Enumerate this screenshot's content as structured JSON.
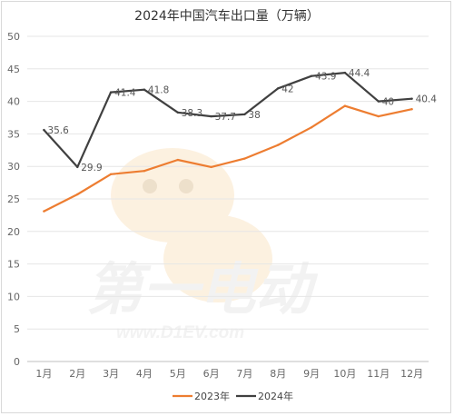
{
  "chart_data": {
    "type": "line",
    "title": "2024年中国汽车出口量（万辆）",
    "categories": [
      "1月",
      "2月",
      "3月",
      "4月",
      "5月",
      "6月",
      "7月",
      "8月",
      "9月",
      "10月",
      "11月",
      "12月"
    ],
    "ylim": [
      0,
      50
    ],
    "yticks": [
      0,
      5,
      10,
      15,
      20,
      25,
      30,
      35,
      40,
      45,
      50
    ],
    "grid": true,
    "legend_position": "bottom",
    "series": [
      {
        "name": "2023年",
        "color": "#ed7d31",
        "values": [
          23.1,
          25.7,
          28.8,
          29.3,
          31.0,
          29.9,
          31.2,
          33.3,
          36.0,
          39.3,
          37.7,
          38.8
        ],
        "show_labels": false
      },
      {
        "name": "2024年",
        "color": "#404040",
        "values": [
          35.6,
          29.9,
          41.4,
          41.8,
          38.3,
          37.7,
          38,
          42,
          43.9,
          44.4,
          40,
          40.4
        ],
        "labels": [
          "35.6",
          "29.9",
          "41.4",
          "41.8",
          "38.3",
          "37.7",
          "38",
          "42",
          "43.9",
          "44.4",
          "40",
          "40.4"
        ],
        "show_labels": true
      }
    ]
  },
  "watermark": {
    "brand_text": "第一电动",
    "url_text": "www.D1EV.com"
  }
}
